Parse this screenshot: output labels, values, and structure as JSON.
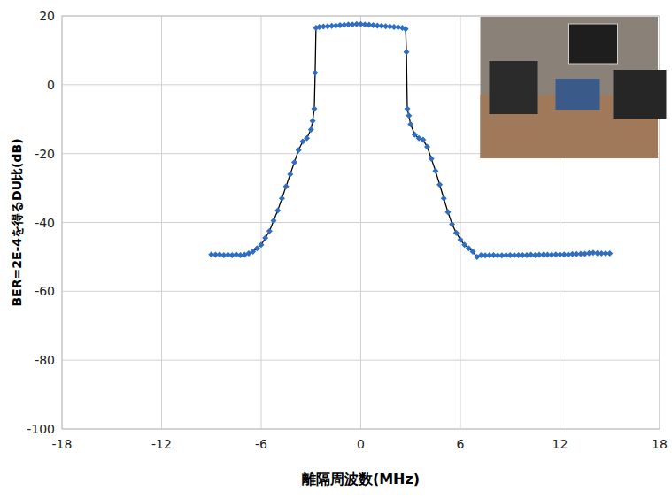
{
  "chart_data": {
    "type": "line",
    "xlabel": "離隔周波数(MHz)",
    "ylabel": "BER=2E-4を得るDU比(dB)",
    "color": "#2e6fc0",
    "marker": "diamond",
    "line_style": "solid",
    "grid": true,
    "xlim": [
      -18,
      18
    ],
    "xticks": [
      -18,
      -12,
      -6,
      0,
      6,
      12,
      18
    ],
    "ylim": [
      -100,
      20
    ],
    "yticks": [
      -100,
      -80,
      -60,
      -40,
      -20,
      0,
      20
    ],
    "x": [
      -9,
      -8.75,
      -8.5,
      -8.25,
      -8,
      -7.75,
      -7.5,
      -7.25,
      -7,
      -6.75,
      -6.5,
      -6.25,
      -6,
      -5.75,
      -5.5,
      -5.25,
      -5,
      -4.75,
      -4.5,
      -4.25,
      -4,
      -3.75,
      -3.5,
      -3.25,
      -3,
      -2.9,
      -2.8,
      -2.75,
      -2.7,
      -2.5,
      -2.25,
      -2,
      -1.75,
      -1.5,
      -1.25,
      -1,
      -0.75,
      -0.5,
      -0.25,
      0,
      0.25,
      0.5,
      0.75,
      1,
      1.25,
      1.5,
      1.75,
      2,
      2.25,
      2.5,
      2.7,
      2.75,
      2.8,
      2.9,
      3,
      3.25,
      3.5,
      3.75,
      4,
      4.25,
      4.5,
      4.75,
      5,
      5.25,
      5.5,
      5.75,
      6,
      6.25,
      6.5,
      6.75,
      7,
      7.25,
      7.5,
      7.75,
      8,
      8.25,
      8.5,
      8.75,
      9,
      9.25,
      9.5,
      9.75,
      10,
      10.25,
      10.5,
      10.75,
      11,
      11.25,
      11.5,
      11.75,
      12,
      12.25,
      12.5,
      12.75,
      13,
      13.25,
      13.5,
      13.75,
      14,
      14.25,
      14.5,
      14.75,
      15
    ],
    "values": [
      -49.3,
      -49.4,
      -49.3,
      -49.5,
      -49.4,
      -49.5,
      -49.3,
      -49.5,
      -49.4,
      -49.0,
      -48.5,
      -47.5,
      -46.5,
      -44.5,
      -42.5,
      -39.5,
      -36.5,
      -33,
      -29.5,
      -26,
      -22.5,
      -19,
      -16.5,
      -15.5,
      -13,
      -10.5,
      -7,
      3.5,
      16.5,
      16.8,
      16.9,
      17,
      17.1,
      17.2,
      17.3,
      17.4,
      17.5,
      17.5,
      17.6,
      17.6,
      17.5,
      17.4,
      17.3,
      17.2,
      17.1,
      17,
      16.9,
      16.8,
      16.7,
      16.5,
      16.2,
      9.5,
      -7,
      -9,
      -11.5,
      -14.5,
      -15.5,
      -16,
      -18,
      -21.5,
      -25,
      -29,
      -33,
      -37,
      -40.5,
      -43,
      -45,
      -46.5,
      -47.5,
      -48.5,
      -50,
      -49.5,
      -49.6,
      -49.5,
      -49.5,
      -49.6,
      -49.6,
      -49.5,
      -49.5,
      -49.5,
      -49.5,
      -49.5,
      -49.5,
      -49.4,
      -49.5,
      -49.4,
      -49.4,
      -49.4,
      -49.4,
      -49.3,
      -49.3,
      -49.3,
      -49.3,
      -49.2,
      -49.2,
      -49.1,
      -49.1,
      -48.9,
      -48.8,
      -48.9,
      -49.0,
      -49.0,
      -49.0
    ]
  }
}
